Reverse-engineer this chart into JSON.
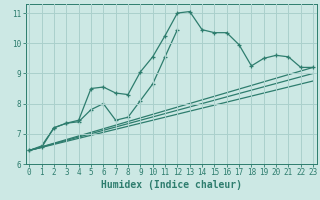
{
  "xlabel": "Humidex (Indice chaleur)",
  "x_values": [
    0,
    1,
    2,
    3,
    4,
    5,
    6,
    7,
    8,
    9,
    10,
    11,
    12,
    13,
    14,
    15,
    16,
    17,
    18,
    19,
    20,
    21,
    22,
    23
  ],
  "line1_y": [
    6.45,
    6.55,
    7.2,
    7.35,
    7.45,
    8.5,
    8.55,
    8.35,
    8.3,
    9.05,
    9.55,
    10.25,
    11.0,
    11.05,
    10.45,
    10.35,
    10.35,
    9.95,
    9.25,
    9.5,
    9.6,
    9.55,
    9.2,
    9.2
  ],
  "line2_y": [
    6.45,
    6.6,
    7.2,
    7.35,
    7.4,
    7.8,
    8.0,
    7.45,
    7.55,
    8.1,
    8.65,
    9.55,
    10.45,
    null,
    null,
    null,
    null,
    null,
    null,
    null,
    null,
    null,
    null,
    null
  ],
  "line_straight1": [
    [
      0,
      6.45
    ],
    [
      23,
      9.2
    ]
  ],
  "line_straight2": [
    [
      0,
      6.45
    ],
    [
      23,
      9.0
    ]
  ],
  "line_straight3": [
    [
      0,
      6.45
    ],
    [
      23,
      8.75
    ]
  ],
  "color": "#2e7d6e",
  "bg_color": "#cce8e4",
  "grid_color": "#aad0cc",
  "ylim": [
    6.0,
    11.3
  ],
  "xlim": [
    -0.3,
    23.3
  ],
  "yticks": [
    6,
    7,
    8,
    9,
    10,
    11
  ],
  "xticks": [
    0,
    1,
    2,
    3,
    4,
    5,
    6,
    7,
    8,
    9,
    10,
    11,
    12,
    13,
    14,
    15,
    16,
    17,
    18,
    19,
    20,
    21,
    22,
    23
  ],
  "xlabel_fontsize": 7,
  "tick_fontsize": 5.5
}
